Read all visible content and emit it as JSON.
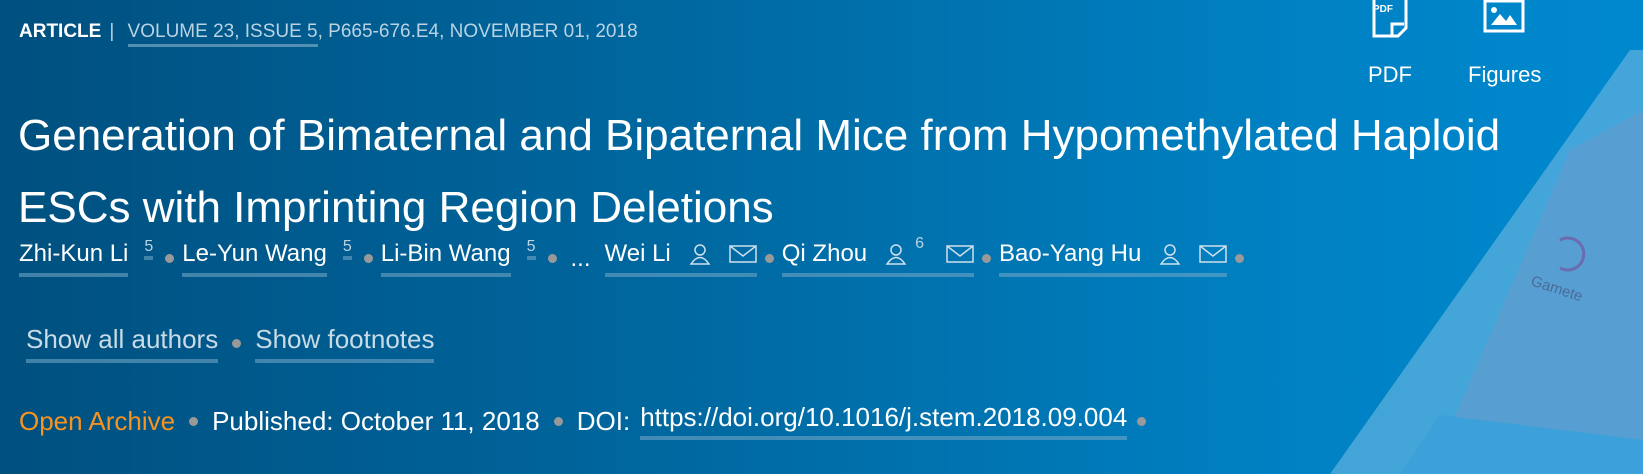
{
  "header": {
    "type": "ARTICLE",
    "citation_linked": "VOLUME 23, ISSUE 5",
    "citation_rest": ", P665-676.E4, NOVEMBER 01, 2018"
  },
  "tools": {
    "pdf_label": "PDF",
    "pdf_icon_text": "PDF",
    "figures_label": "Figures"
  },
  "title": "Generation of Bimaternal and Bipaternal Mice from Hypomethylated Haploid ESCs with Imprinting Region Deletions",
  "authors": [
    {
      "name": "Zhi-Kun Li",
      "sup": "5"
    },
    {
      "name": "Le-Yun Wang",
      "sup": "5"
    },
    {
      "name": "Li-Bin Wang",
      "sup": "5"
    },
    {
      "ellipsis": "..."
    },
    {
      "name": "Wei Li"
    },
    {
      "name": "Qi Zhou",
      "sup": "6"
    },
    {
      "name": "Bao-Yang Hu"
    }
  ],
  "links": {
    "show_all": "Show all authors",
    "show_footnotes": "Show footnotes"
  },
  "meta": {
    "access": "Open Archive",
    "published": "Published: October 11, 2018",
    "doi_label": "DOI:",
    "doi": "https://doi.org/10.1016/j.stem.2018.09.004"
  },
  "cover_text": "Gamete",
  "colors": {
    "access": "#f7931e",
    "background": "#0070b0"
  }
}
